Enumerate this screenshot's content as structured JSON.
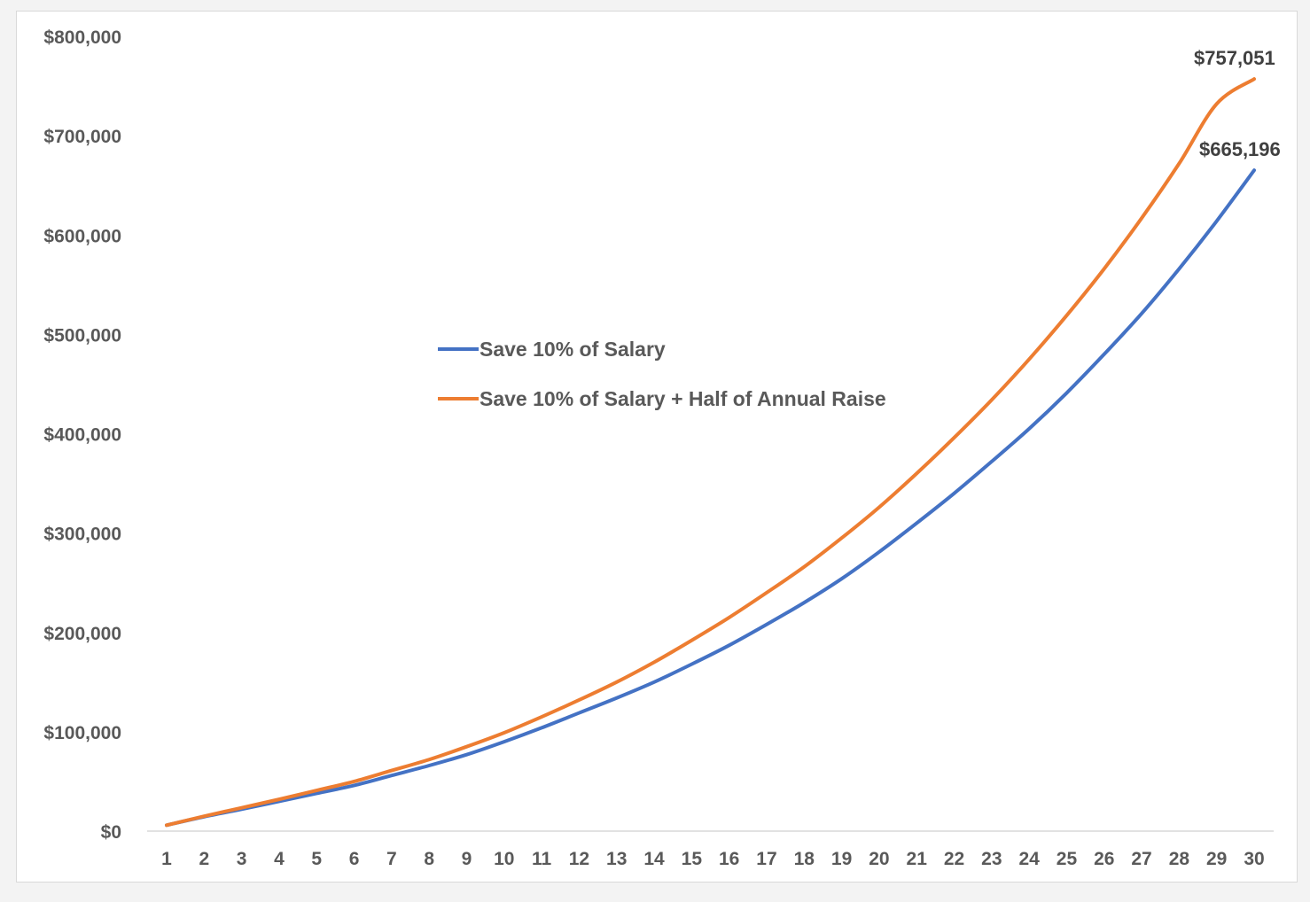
{
  "chart_data": {
    "type": "line",
    "title": "",
    "xlabel": "",
    "ylabel": "",
    "categories": [
      "1",
      "2",
      "3",
      "4",
      "5",
      "6",
      "7",
      "8",
      "9",
      "10",
      "11",
      "12",
      "13",
      "14",
      "15",
      "16",
      "17",
      "18",
      "19",
      "20",
      "21",
      "22",
      "23",
      "24",
      "25",
      "26",
      "27",
      "28",
      "29",
      "30"
    ],
    "ylim": [
      0,
      800000
    ],
    "yticks": [
      {
        "value": 0,
        "label": "$0"
      },
      {
        "value": 100000,
        "label": "$100,000"
      },
      {
        "value": 200000,
        "label": "$200,000"
      },
      {
        "value": 300000,
        "label": "$300,000"
      },
      {
        "value": 400000,
        "label": "$400,000"
      },
      {
        "value": 500000,
        "label": "$500,000"
      },
      {
        "value": 600000,
        "label": "$600,000"
      },
      {
        "value": 700000,
        "label": "$700,000"
      },
      {
        "value": 800000,
        "label": "$800,000"
      }
    ],
    "grid": false,
    "legend_position": "center-left",
    "series": [
      {
        "name": "Save 10% of Salary",
        "color": "#4472c4",
        "values": [
          6000,
          14500,
          22000,
          30000,
          38000,
          46000,
          56000,
          66000,
          77000,
          90000,
          104000,
          119000,
          134000,
          150000,
          168000,
          187000,
          208000,
          230000,
          254000,
          281000,
          310000,
          340000,
          372000,
          405000,
          441000,
          480000,
          521000,
          566000,
          614000,
          665196
        ],
        "end_label": "$665,196"
      },
      {
        "name": "Save 10% of Salary + Half of Annual Raise",
        "color": "#ed7d31",
        "values": [
          6000,
          15000,
          23500,
          32000,
          41000,
          50000,
          61000,
          72000,
          85000,
          99000,
          115000,
          132000,
          150000,
          170000,
          192000,
          215000,
          240000,
          266000,
          295000,
          326000,
          360000,
          396000,
          434000,
          475000,
          519000,
          566000,
          617000,
          672000,
          732000,
          757051
        ],
        "end_label": "$757,051"
      }
    ]
  }
}
